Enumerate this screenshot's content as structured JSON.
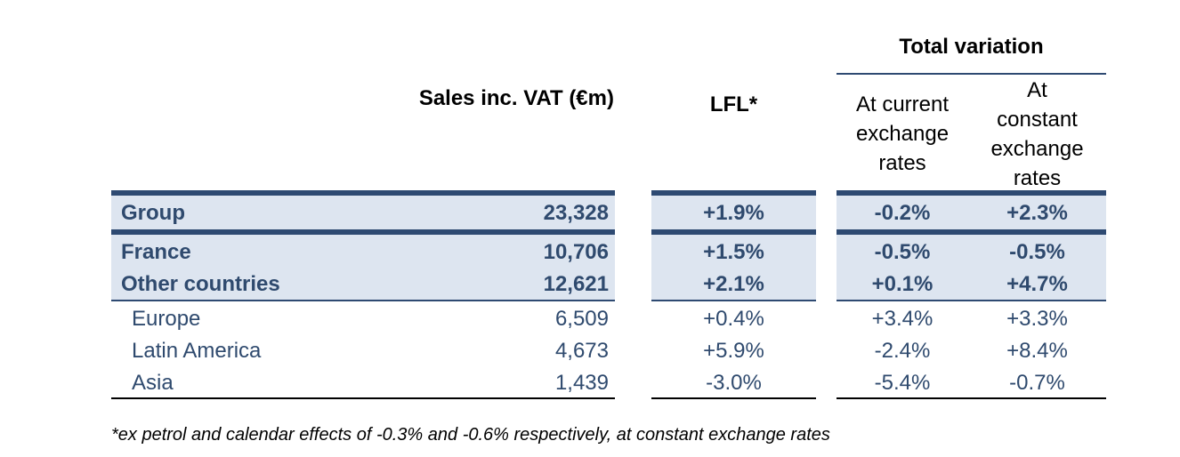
{
  "header": {
    "sales": "Sales inc. VAT (€m)",
    "lfl": "LFL*",
    "total_variation": "Total variation",
    "current_rates": [
      "At current",
      "exchange",
      "rates"
    ],
    "constant_rates": [
      "At",
      "constant",
      "exchange",
      "rates"
    ]
  },
  "rows": [
    {
      "label": "Group",
      "sales": "23,328",
      "lfl": "+1.9%",
      "current": "-0.2%",
      "constant": "+2.3%"
    },
    {
      "label": "France",
      "sales": "10,706",
      "lfl": "+1.5%",
      "current": "-0.5%",
      "constant": "-0.5%"
    },
    {
      "label": "Other countries",
      "sales": "12,621",
      "lfl": "+2.1%",
      "current": "+0.1%",
      "constant": "+4.7%"
    },
    {
      "label": "Europe",
      "sales": "6,509",
      "lfl": "+0.4%",
      "current": "+3.4%",
      "constant": "+3.3%"
    },
    {
      "label": "Latin America",
      "sales": "4,673",
      "lfl": "+5.9%",
      "current": "-2.4%",
      "constant": "+8.4%"
    },
    {
      "label": "Asia",
      "sales": "1,439",
      "lfl": "-3.0%",
      "current": "-5.4%",
      "constant": "-0.7%"
    }
  ],
  "footnote": "*ex petrol and calendar effects of -0.3% and -0.6% respectively, at constant exchange rates",
  "colors": {
    "navy": "#2e4a72",
    "text": "#2f4a6e",
    "shade": "#dde5f0"
  }
}
